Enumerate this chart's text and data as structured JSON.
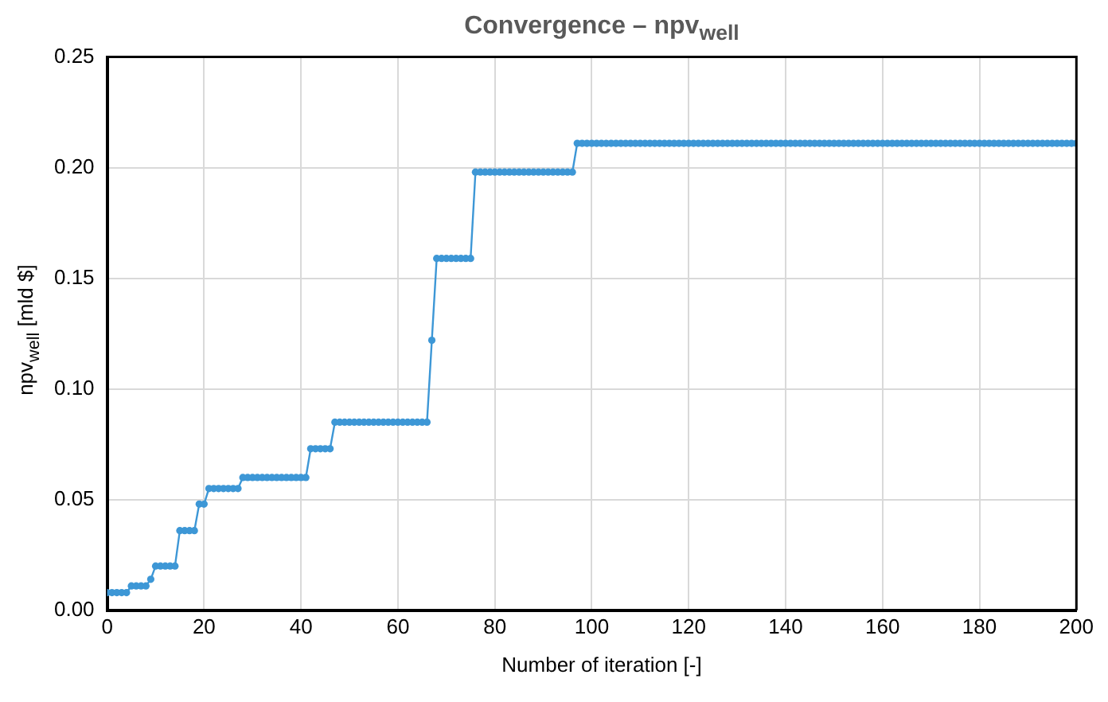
{
  "chart_data": {
    "type": "line",
    "title": "Convergence – npv$_{well}$",
    "xlabel": "Number of iteration [-]",
    "ylabel": "npv$_{well}$ [mld $]",
    "x": [
      0,
      1,
      2,
      3,
      4,
      5,
      6,
      7,
      8,
      9,
      10,
      11,
      12,
      13,
      14,
      15,
      16,
      17,
      18,
      19,
      20,
      21,
      22,
      23,
      24,
      25,
      26,
      27,
      28,
      29,
      30,
      31,
      32,
      33,
      34,
      35,
      36,
      37,
      38,
      39,
      40,
      41,
      42,
      43,
      44,
      45,
      46,
      47,
      48,
      49,
      50,
      51,
      52,
      53,
      54,
      55,
      56,
      57,
      58,
      59,
      60,
      61,
      62,
      63,
      64,
      65,
      66,
      67,
      68,
      69,
      70,
      71,
      72,
      73,
      74,
      75,
      76,
      77,
      78,
      79,
      80,
      81,
      82,
      83,
      84,
      85,
      86,
      87,
      88,
      89,
      90,
      91,
      92,
      93,
      94,
      95,
      96,
      97,
      98,
      99,
      100,
      101,
      102,
      103,
      104,
      105,
      106,
      107,
      108,
      109,
      110,
      111,
      112,
      113,
      114,
      115,
      116,
      117,
      118,
      119,
      120,
      121,
      122,
      123,
      124,
      125,
      126,
      127,
      128,
      129,
      130,
      131,
      132,
      133,
      134,
      135,
      136,
      137,
      138,
      139,
      140,
      141,
      142,
      143,
      144,
      145,
      146,
      147,
      148,
      149,
      150,
      151,
      152,
      153,
      154,
      155,
      156,
      157,
      158,
      159,
      160,
      161,
      162,
      163,
      164,
      165,
      166,
      167,
      168,
      169,
      170,
      171,
      172,
      173,
      174,
      175,
      176,
      177,
      178,
      179,
      180,
      181,
      182,
      183,
      184,
      185,
      186,
      187,
      188,
      189,
      190,
      191,
      192,
      193,
      194,
      195,
      196,
      197,
      198,
      199,
      200
    ],
    "series": [
      {
        "color": "#3d97d6",
        "values": [
          0.008,
          0.008,
          0.008,
          0.008,
          0.008,
          0.011,
          0.011,
          0.011,
          0.011,
          0.014,
          0.02,
          0.02,
          0.02,
          0.02,
          0.02,
          0.036,
          0.036,
          0.036,
          0.036,
          0.048,
          0.048,
          0.055,
          0.055,
          0.055,
          0.055,
          0.055,
          0.055,
          0.055,
          0.06,
          0.06,
          0.06,
          0.06,
          0.06,
          0.06,
          0.06,
          0.06,
          0.06,
          0.06,
          0.06,
          0.06,
          0.06,
          0.06,
          0.073,
          0.073,
          0.073,
          0.073,
          0.073,
          0.085,
          0.085,
          0.085,
          0.085,
          0.085,
          0.085,
          0.085,
          0.085,
          0.085,
          0.085,
          0.085,
          0.085,
          0.085,
          0.085,
          0.085,
          0.085,
          0.085,
          0.085,
          0.085,
          0.085,
          0.122,
          0.159,
          0.159,
          0.159,
          0.159,
          0.159,
          0.159,
          0.159,
          0.159,
          0.198,
          0.198,
          0.198,
          0.198,
          0.198,
          0.198,
          0.198,
          0.198,
          0.198,
          0.198,
          0.198,
          0.198,
          0.198,
          0.198,
          0.198,
          0.198,
          0.198,
          0.198,
          0.198,
          0.198,
          0.198,
          0.211,
          0.211,
          0.211,
          0.211,
          0.211,
          0.211,
          0.211,
          0.211,
          0.211,
          0.211,
          0.211,
          0.211,
          0.211,
          0.211,
          0.211,
          0.211,
          0.211,
          0.211,
          0.211,
          0.211,
          0.211,
          0.211,
          0.211,
          0.211,
          0.211,
          0.211,
          0.211,
          0.211,
          0.211,
          0.211,
          0.211,
          0.211,
          0.211,
          0.211,
          0.211,
          0.211,
          0.211,
          0.211,
          0.211,
          0.211,
          0.211,
          0.211,
          0.211,
          0.211,
          0.211,
          0.211,
          0.211,
          0.211,
          0.211,
          0.211,
          0.211,
          0.211,
          0.211,
          0.211,
          0.211,
          0.211,
          0.211,
          0.211,
          0.211,
          0.211,
          0.211,
          0.211,
          0.211,
          0.211,
          0.211,
          0.211,
          0.211,
          0.211,
          0.211,
          0.211,
          0.211,
          0.211,
          0.211,
          0.211,
          0.211,
          0.211,
          0.211,
          0.211,
          0.211,
          0.211,
          0.211,
          0.211,
          0.211,
          0.211,
          0.211,
          0.211,
          0.211,
          0.211,
          0.211,
          0.211,
          0.211,
          0.211,
          0.211,
          0.211,
          0.211,
          0.211,
          0.211,
          0.211,
          0.211,
          0.211,
          0.211,
          0.211,
          0.211,
          0.211
        ]
      }
    ],
    "xlim": [
      0,
      200
    ],
    "xticks": [
      0,
      20,
      40,
      60,
      80,
      100,
      120,
      140,
      160,
      180,
      200
    ],
    "ylim": [
      0,
      0.25
    ],
    "yticks": [
      {
        "value": 0,
        "label": "0.00"
      },
      {
        "value": 0.05,
        "label": "0.05"
      },
      {
        "value": 0.1,
        "label": "0.10"
      },
      {
        "value": 0.15,
        "label": "0.15"
      },
      {
        "value": 0.2,
        "label": "0.20"
      },
      {
        "value": 0.25,
        "label": "0.25"
      }
    ],
    "grid": true,
    "legend": false,
    "marker": "circle",
    "line_style": "solid"
  }
}
